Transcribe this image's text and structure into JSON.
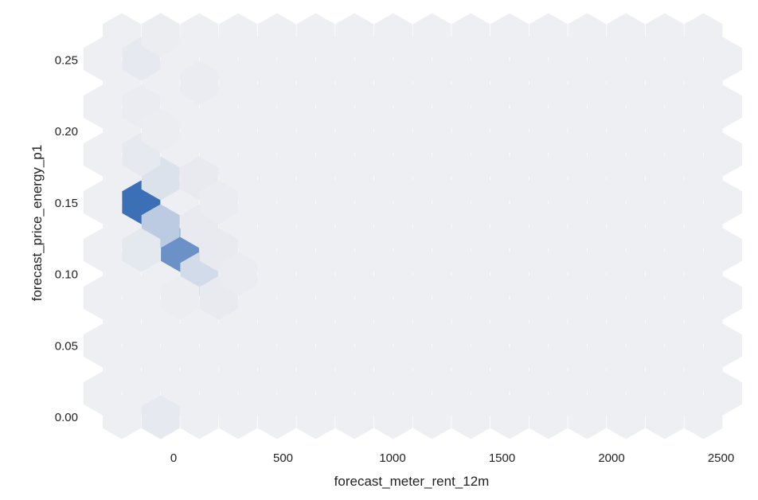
{
  "chart_data": {
    "type": "heatmap",
    "subtype": "hexbin",
    "title": "",
    "xlabel": "forecast_meter_rent_12m",
    "ylabel": "forecast_price_energy_p1",
    "xlim": [
      -330,
      2500
    ],
    "ylim": [
      -0.012,
      0.285
    ],
    "x_ticks": [
      0,
      500,
      1000,
      1500,
      2000,
      2500
    ],
    "x_tick_labels": [
      "0",
      "500",
      "1000",
      "1500",
      "2000",
      "2500"
    ],
    "y_ticks": [
      0.0,
      0.05,
      0.1,
      0.15,
      0.2,
      0.25
    ],
    "y_tick_labels": [
      "0.00",
      "0.05",
      "0.10",
      "0.15",
      "0.20",
      "0.25"
    ],
    "grid": false,
    "colormap": {
      "low": "#eeeff2",
      "high": "#3b6fb6"
    },
    "background_hex_color": "#eeeff2",
    "hex_grid": {
      "x0": -265,
      "dx": 177,
      "y0": 0,
      "dy": 0.0167,
      "cols": 16,
      "rows": 17
    },
    "bins": [
      {
        "x": 1,
        "y": 0.1505,
        "count": 1.0
      },
      {
        "x": 2,
        "y": 0.1171,
        "count": 0.72
      },
      {
        "x": 1,
        "y": 0.1338,
        "count": 0.26
      },
      {
        "x": 2,
        "y": 0.1004,
        "count": 0.14
      },
      {
        "x": 1,
        "y": 0.1672,
        "count": 0.09
      },
      {
        "x": 1,
        "y": 0.1171,
        "count": 0.05
      },
      {
        "x": 1,
        "y": 0.1839,
        "count": 0.04
      },
      {
        "x": 1,
        "y": 0.0,
        "count": 0.04
      },
      {
        "x": 1,
        "y": 0.2508,
        "count": 0.04
      },
      {
        "x": 2,
        "y": 0.1672,
        "count": 0.03
      },
      {
        "x": 2,
        "y": 0.1338,
        "count": 0.03
      },
      {
        "x": 3,
        "y": 0.1171,
        "count": 0.03
      },
      {
        "x": 3,
        "y": 0.0836,
        "count": 0.03
      },
      {
        "x": 1,
        "y": 0.2174,
        "count": 0.02
      },
      {
        "x": 2,
        "y": 0.2341,
        "count": 0.02
      },
      {
        "x": 3,
        "y": 0.1505,
        "count": 0.02
      },
      {
        "x": 3,
        "y": 0.1004,
        "count": 0.02
      },
      {
        "x": 2,
        "y": 0.0836,
        "count": 0.015
      },
      {
        "x": 1,
        "y": 0.2676,
        "count": 0.015
      },
      {
        "x": 1,
        "y": 0.2007,
        "count": 0.015
      }
    ]
  }
}
